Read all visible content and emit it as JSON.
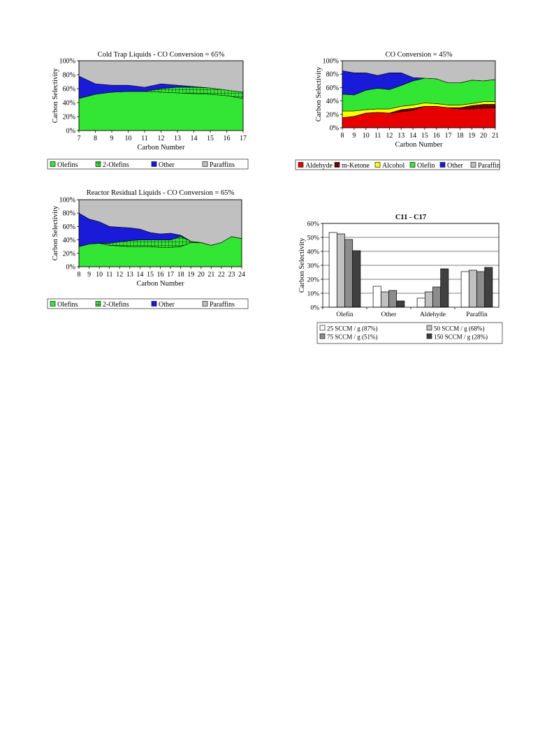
{
  "chart_data": [
    {
      "id": "cold",
      "type": "area",
      "stacked": true,
      "title": "Cold Trap Liquids - CO Conversion = 65%",
      "xlabel": "Carbon Number",
      "ylabel": "Carbon Selectivity",
      "ylim": [
        0,
        100
      ],
      "yticks": [
        "0%",
        "20%",
        "40%",
        "60%",
        "80%",
        "100%"
      ],
      "x": [
        7,
        8,
        9,
        10,
        11,
        12,
        13,
        14,
        15,
        16,
        17
      ],
      "series": [
        {
          "name": "Olefins",
          "color": "#33e633",
          "values": [
            46,
            52,
            55,
            56,
            56,
            55,
            54,
            53,
            52,
            50,
            46
          ]
        },
        {
          "name": "2-Olefins",
          "color": "#33e633",
          "pattern": "grid",
          "values": [
            0,
            0,
            0,
            0,
            0,
            5,
            8,
            9,
            9,
            8,
            9
          ]
        },
        {
          "name": "Other",
          "color": "#1a1ad9",
          "values": [
            32,
            15,
            10,
            9,
            6,
            7,
            3,
            1,
            0,
            0,
            0
          ]
        },
        {
          "name": "Paraffins",
          "color": "#c0c0c0",
          "values": [
            22,
            33,
            35,
            35,
            38,
            33,
            35,
            37,
            39,
            42,
            45
          ]
        }
      ],
      "legend": "bottom"
    },
    {
      "id": "co45",
      "type": "area",
      "stacked": true,
      "title": "CO Conversion = 45%",
      "xlabel": "Carbon Number",
      "ylabel": "Carbon Selectivity",
      "ylim": [
        0,
        100
      ],
      "yticks": [
        "0%",
        "20%",
        "40%",
        "60%",
        "80%",
        "100%"
      ],
      "x": [
        8,
        9,
        10,
        11,
        12,
        13,
        14,
        15,
        16,
        17,
        18,
        19,
        20,
        21
      ],
      "series": [
        {
          "name": "Aldehyde",
          "color": "#e60000",
          "values": [
            15,
            17,
            22,
            23,
            22,
            24,
            26,
            32,
            32,
            30,
            28,
            28,
            29,
            30
          ]
        },
        {
          "name": "m-Ketone",
          "color": "#800000",
          "pattern": "grid",
          "values": [
            0,
            0,
            0,
            0,
            0,
            3,
            3,
            0,
            0,
            0,
            2,
            5,
            6,
            5
          ]
        },
        {
          "name": "Alcohol",
          "color": "#ffff00",
          "values": [
            10,
            8,
            5,
            5,
            6,
            5,
            5,
            5,
            4,
            4,
            4,
            3,
            4,
            4
          ]
        },
        {
          "name": "Olefin",
          "color": "#33e633",
          "values": [
            25,
            24,
            29,
            31,
            29,
            31,
            36,
            37,
            37,
            33,
            33,
            35,
            31,
            33
          ]
        },
        {
          "name": "Other",
          "color": "#1a1ad9",
          "values": [
            35,
            33,
            26,
            19,
            25,
            19,
            5,
            0,
            0,
            0,
            0,
            0,
            0,
            0
          ]
        },
        {
          "name": "Paraffin",
          "color": "#c0c0c0",
          "values": [
            15,
            18,
            18,
            22,
            18,
            18,
            25,
            26,
            27,
            33,
            33,
            29,
            30,
            28
          ]
        }
      ],
      "legend": "bottom"
    },
    {
      "id": "reactor",
      "type": "area",
      "stacked": true,
      "title": "Reactor Residual Liquids - CO Conversion = 65%",
      "xlabel": "Carbon Number",
      "ylabel": "Carbon Selectivity",
      "ylim": [
        0,
        100
      ],
      "yticks": [
        "0%",
        "20%",
        "40%",
        "60%",
        "80%",
        "100%"
      ],
      "x": [
        8,
        9,
        10,
        11,
        12,
        13,
        14,
        15,
        16,
        17,
        18,
        19,
        20,
        21,
        22,
        23,
        24
      ],
      "series": [
        {
          "name": "Olefins",
          "color": "#33e633",
          "values": [
            30,
            34,
            35,
            32,
            31,
            30,
            30,
            30,
            29,
            29,
            30,
            36,
            36,
            32,
            36,
            45,
            42
          ]
        },
        {
          "name": "2-Olefins",
          "color": "#33e633",
          "pattern": "grid",
          "values": [
            0,
            0,
            0,
            3,
            6,
            9,
            10,
            10,
            11,
            11,
            15,
            2,
            0,
            0,
            0,
            0,
            0
          ]
        },
        {
          "name": "Other",
          "color": "#1a1ad9",
          "values": [
            50,
            37,
            32,
            25,
            22,
            19,
            16,
            11,
            9,
            10,
            2,
            0,
            0,
            0,
            0,
            0,
            0
          ]
        },
        {
          "name": "Paraffins",
          "color": "#c0c0c0",
          "values": [
            20,
            29,
            33,
            40,
            41,
            42,
            44,
            49,
            51,
            50,
            53,
            62,
            64,
            68,
            64,
            55,
            58
          ]
        }
      ],
      "legend": "bottom"
    },
    {
      "id": "bars",
      "type": "bar",
      "title": "C11 - C17",
      "xlabel": "",
      "ylabel": "Carbon Selectivity",
      "ylim": [
        0,
        60
      ],
      "yticks": [
        "0%",
        "10%",
        "20%",
        "30%",
        "40%",
        "50%",
        "60%"
      ],
      "categories": [
        "Olefin",
        "Other",
        "Aldehyde",
        "Paraffin"
      ],
      "series": [
        {
          "name": "25 SCCM / g (87%)",
          "color": "#ffffff",
          "values": [
            53.5,
            15,
            6.5,
            25.5
          ]
        },
        {
          "name": "50 SCCM / g (68%)",
          "color": "#c0c0c0",
          "values": [
            52.5,
            11,
            11,
            26.5
          ]
        },
        {
          "name": "75 SCCM / g (51%)",
          "color": "#8c8c8c",
          "values": [
            48.5,
            12,
            14.5,
            25.5
          ]
        },
        {
          "name": "150 SCCM / g (28%)",
          "color": "#404040",
          "values": [
            40.5,
            4.5,
            27.5,
            28.5
          ]
        }
      ],
      "grid": true,
      "legend": "bottom"
    }
  ]
}
